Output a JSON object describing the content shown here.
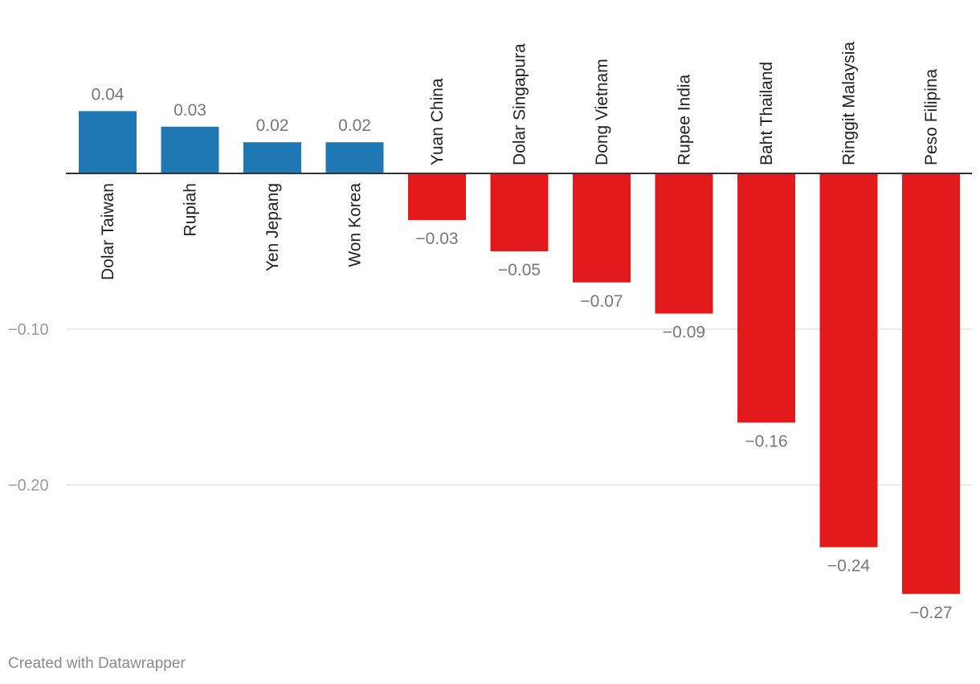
{
  "chart_data": {
    "type": "bar",
    "title": "",
    "xlabel": "",
    "ylabel": "",
    "categories": [
      "Dolar Taiwan",
      "Rupiah",
      "Yen Jepang",
      "Won Korea",
      "Yuan China",
      "Dolar Singapura",
      "Dong Vietnam",
      "Rupee India",
      "Baht Thailand",
      "Ringgit Malaysia",
      "Peso Filipina"
    ],
    "values": [
      0.04,
      0.03,
      0.02,
      0.02,
      -0.03,
      -0.05,
      -0.07,
      -0.09,
      -0.16,
      -0.24,
      -0.27
    ],
    "value_labels": [
      "0.04",
      "0.03",
      "0.02",
      "0.02",
      "−0.03",
      "−0.05",
      "−0.07",
      "−0.09",
      "−0.16",
      "−0.24",
      "−0.27"
    ],
    "yticks": [
      -0.1,
      -0.2
    ],
    "ytick_labels": [
      "−0.10",
      "−0.20"
    ],
    "ylim": [
      -0.28,
      0.05
    ],
    "grid": true,
    "colors": {
      "positive": "#1f77b4",
      "negative": "#e31a1c"
    }
  },
  "footer": {
    "credit": "Created with Datawrapper"
  }
}
